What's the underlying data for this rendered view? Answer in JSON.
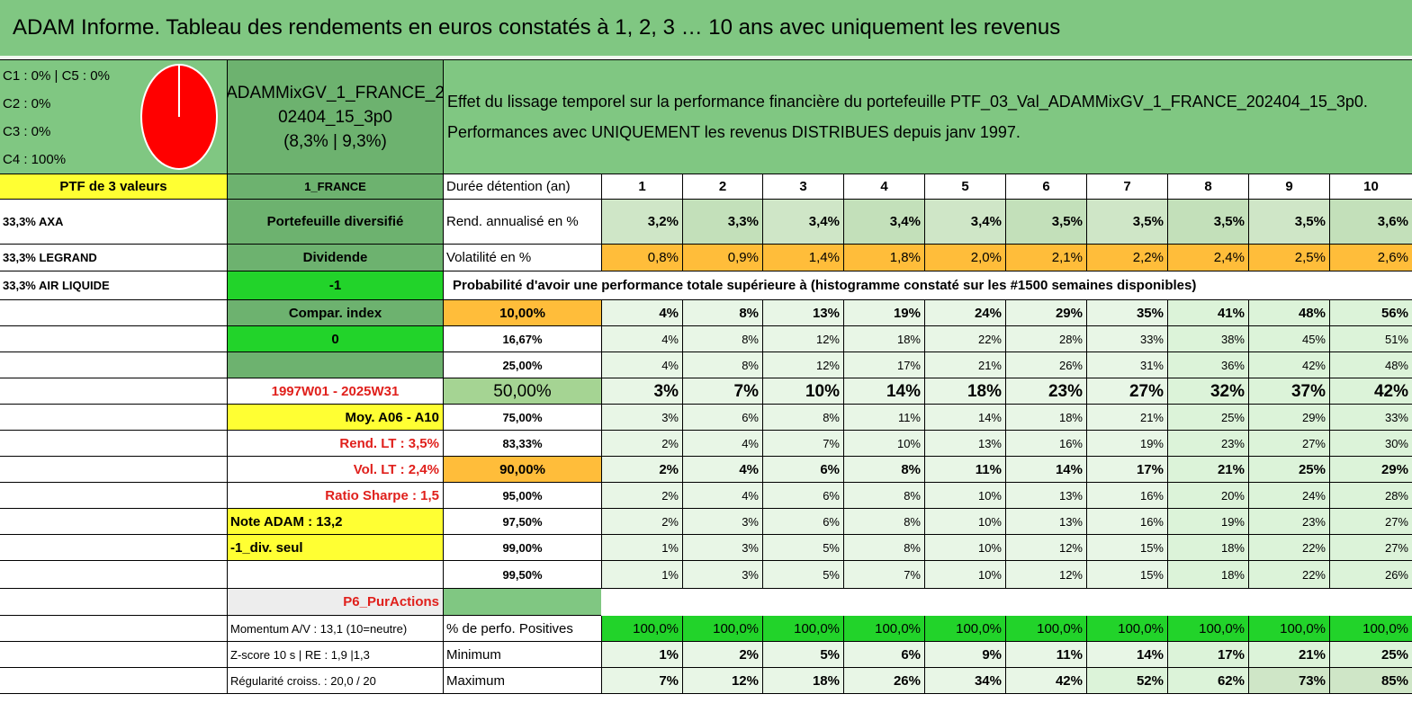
{
  "title": "ADAM Informe. Tableau des rendements en euros constatés à 1, 2, 3 … 10 ans avec uniquement les revenus",
  "composition": [
    "C1 : 0% | C5 : 0%",
    "C2 : 0%",
    "C3 : 0%",
    "C4 : 100%"
  ],
  "pie": {
    "slices": [
      {
        "label": "C4",
        "value": 100,
        "color": "#ff0000"
      }
    ]
  },
  "portfolio_name_lines": [
    "ADAMMixGV_1_FRANCE_2",
    "02404_15_3p0",
    "(8,3% | 9,3%)"
  ],
  "header_text_lines": [
    "Effet du lissage temporel sur la performance financière du portefeuille PTF_03_Val_ADAMMixGV_1_FRANCE_202404_15_3p0.",
    "Performances avec UNIQUEMENT les revenus DISTRIBUES depuis janv 1997."
  ],
  "ptf_label": "PTF de 3 valeurs",
  "market": "1_FRANCE",
  "duration_label": "Durée détention (an)",
  "years": [
    "1",
    "2",
    "3",
    "4",
    "5",
    "6",
    "7",
    "8",
    "9",
    "10"
  ],
  "holdings": [
    "33,3% AXA",
    "33,3% LEGRAND",
    "33,3% AIR LIQUIDE"
  ],
  "left_panel": {
    "diversified": "Portefeuille diversifié",
    "dividend": "Dividende",
    "minus_one": "-1",
    "compar_index": "Compar. index",
    "zero": "0",
    "period": "1997W01 - 2025W31",
    "moy": "Moy. A06 - A10",
    "rend_lt": "Rend. LT : 3,5%",
    "vol_lt": "Vol. LT : 2,4%",
    "sharpe": "Ratio Sharpe : 1,5",
    "note_adam": "Note ADAM : 13,2",
    "div_seul": "-1_div. seul",
    "p6": "P6_PurActions",
    "momentum": "Momentum A/V : 13,1 (10=neutre)",
    "zscore": "Z-score 10 s | RE : 1,9 |1,3",
    "regularite": "Régularité croiss. : 20,0 / 20"
  },
  "rend_label": "Rend. annualisé en %",
  "rend_values": [
    "3,2%",
    "3,3%",
    "3,4%",
    "3,4%",
    "3,4%",
    "3,5%",
    "3,5%",
    "3,5%",
    "3,5%",
    "3,6%"
  ],
  "vol_label": "Volatilité en %",
  "vol_values": [
    "0,8%",
    "0,9%",
    "1,4%",
    "1,8%",
    "2,0%",
    "2,1%",
    "2,2%",
    "2,4%",
    "2,5%",
    "2,6%"
  ],
  "prob_title": "Probabilité d'avoir une performance totale supérieure à (histogramme constaté sur les #1500 semaines disponibles)",
  "prob_rows": [
    {
      "threshold": "10,00%",
      "values": [
        "4%",
        "8%",
        "13%",
        "19%",
        "24%",
        "29%",
        "35%",
        "41%",
        "48%",
        "56%"
      ]
    },
    {
      "threshold": "16,67%",
      "values": [
        "4%",
        "8%",
        "12%",
        "18%",
        "22%",
        "28%",
        "33%",
        "38%",
        "45%",
        "51%"
      ]
    },
    {
      "threshold": "25,00%",
      "values": [
        "4%",
        "8%",
        "12%",
        "17%",
        "21%",
        "26%",
        "31%",
        "36%",
        "42%",
        "48%"
      ]
    },
    {
      "threshold": "50,00%",
      "values": [
        "3%",
        "7%",
        "10%",
        "14%",
        "18%",
        "23%",
        "27%",
        "32%",
        "37%",
        "42%"
      ]
    },
    {
      "threshold": "75,00%",
      "values": [
        "3%",
        "6%",
        "8%",
        "11%",
        "14%",
        "18%",
        "21%",
        "25%",
        "29%",
        "33%"
      ]
    },
    {
      "threshold": "83,33%",
      "values": [
        "2%",
        "4%",
        "7%",
        "10%",
        "13%",
        "16%",
        "19%",
        "23%",
        "27%",
        "30%"
      ]
    },
    {
      "threshold": "90,00%",
      "values": [
        "2%",
        "4%",
        "6%",
        "8%",
        "11%",
        "14%",
        "17%",
        "21%",
        "25%",
        "29%"
      ]
    },
    {
      "threshold": "95,00%",
      "values": [
        "2%",
        "4%",
        "6%",
        "8%",
        "10%",
        "13%",
        "16%",
        "20%",
        "24%",
        "28%"
      ]
    },
    {
      "threshold": "97,50%",
      "values": [
        "2%",
        "3%",
        "6%",
        "8%",
        "10%",
        "13%",
        "16%",
        "19%",
        "23%",
        "27%"
      ]
    },
    {
      "threshold": "99,00%",
      "values": [
        "1%",
        "3%",
        "5%",
        "8%",
        "10%",
        "12%",
        "15%",
        "18%",
        "22%",
        "27%"
      ]
    },
    {
      "threshold": "99,50%",
      "values": [
        "1%",
        "3%",
        "5%",
        "7%",
        "10%",
        "12%",
        "15%",
        "18%",
        "22%",
        "26%"
      ]
    }
  ],
  "pos_label": "% de perfo. Positives",
  "pos_values": [
    "100,0%",
    "100,0%",
    "100,0%",
    "100,0%",
    "100,0%",
    "100,0%",
    "100,0%",
    "100,0%",
    "100,0%",
    "100,0%"
  ],
  "min_label": "Minimum",
  "min_values": [
    "1%",
    "2%",
    "5%",
    "6%",
    "9%",
    "11%",
    "14%",
    "17%",
    "21%",
    "25%"
  ],
  "max_label": "Maximum",
  "max_values": [
    "7%",
    "12%",
    "18%",
    "26%",
    "34%",
    "42%",
    "52%",
    "62%",
    "73%",
    "85%"
  ]
}
